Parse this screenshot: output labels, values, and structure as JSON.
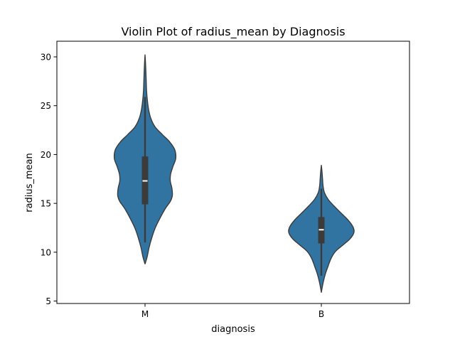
{
  "chart_data": {
    "type": "violin",
    "title": "Violin Plot of radius_mean by Diagnosis",
    "xlabel": "diagnosis",
    "ylabel": "radius_mean",
    "categories": [
      "M",
      "B"
    ],
    "ylim": [
      4.75,
      31.6
    ],
    "yticks": [
      5,
      10,
      15,
      20,
      25,
      30
    ],
    "grid": false,
    "legend": "none",
    "colors": {
      "fill": "#3274a1",
      "edge": "#3b3b3b",
      "box": "#3b3b3b",
      "median": "#ffffff"
    },
    "violins": [
      {
        "category": "M",
        "range": [
          8.8,
          30.2
        ],
        "whiskers": [
          11.0,
          25.9
        ],
        "quartiles": [
          14.9,
          19.8
        ],
        "median": 17.3,
        "profile": [
          [
            8.8,
            0.0
          ],
          [
            9.5,
            0.06
          ],
          [
            10.5,
            0.12
          ],
          [
            11.5,
            0.2
          ],
          [
            12.5,
            0.3
          ],
          [
            13.5,
            0.44
          ],
          [
            14.5,
            0.6
          ],
          [
            15.2,
            0.74
          ],
          [
            15.8,
            0.8
          ],
          [
            16.5,
            0.79
          ],
          [
            17.3,
            0.74
          ],
          [
            18.0,
            0.75
          ],
          [
            18.8,
            0.82
          ],
          [
            19.6,
            0.9
          ],
          [
            20.5,
            0.87
          ],
          [
            21.3,
            0.72
          ],
          [
            22.0,
            0.52
          ],
          [
            22.8,
            0.3
          ],
          [
            23.6,
            0.18
          ],
          [
            24.5,
            0.11
          ],
          [
            25.5,
            0.07
          ],
          [
            26.5,
            0.045
          ],
          [
            27.5,
            0.035
          ],
          [
            28.5,
            0.025
          ],
          [
            29.5,
            0.012
          ],
          [
            30.2,
            0.0
          ]
        ]
      },
      {
        "category": "B",
        "range": [
          5.9,
          18.9
        ],
        "whiskers": [
          7.6,
          16.5
        ],
        "quartiles": [
          10.9,
          13.6
        ],
        "median": 12.3,
        "profile": [
          [
            5.9,
            0.0
          ],
          [
            6.3,
            0.02
          ],
          [
            7.0,
            0.06
          ],
          [
            7.8,
            0.12
          ],
          [
            8.6,
            0.2
          ],
          [
            9.4,
            0.29
          ],
          [
            10.1,
            0.42
          ],
          [
            10.7,
            0.62
          ],
          [
            11.3,
            0.82
          ],
          [
            11.8,
            0.93
          ],
          [
            12.2,
            0.96
          ],
          [
            12.7,
            0.91
          ],
          [
            13.3,
            0.78
          ],
          [
            14.0,
            0.58
          ],
          [
            14.7,
            0.38
          ],
          [
            15.4,
            0.2
          ],
          [
            16.1,
            0.09
          ],
          [
            16.8,
            0.05
          ],
          [
            17.5,
            0.035
          ],
          [
            18.2,
            0.02
          ],
          [
            18.9,
            0.0
          ]
        ]
      }
    ]
  }
}
